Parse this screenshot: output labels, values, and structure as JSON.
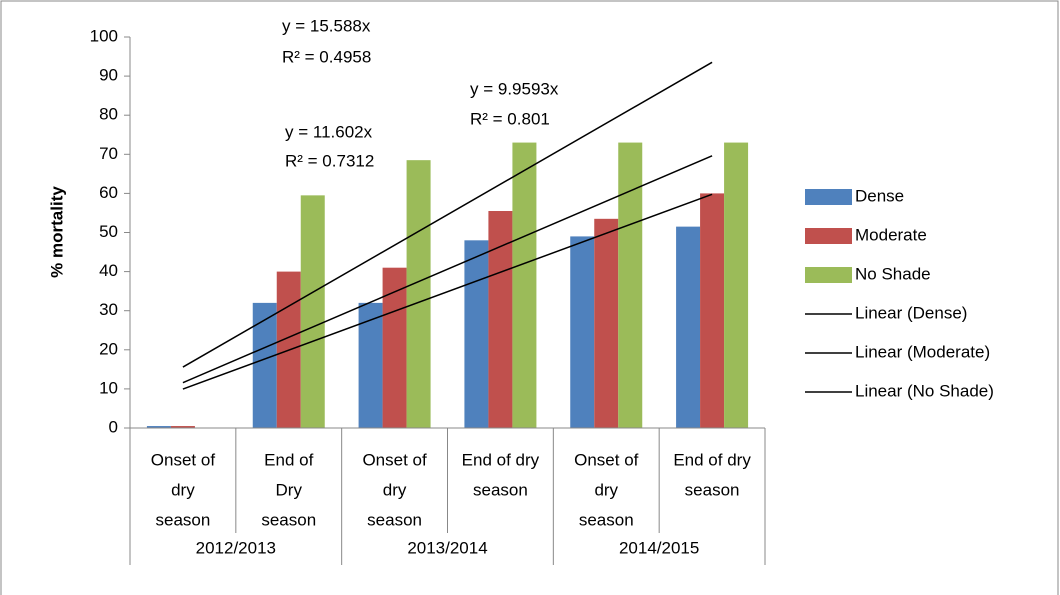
{
  "chart_data": {
    "type": "bar",
    "ylabel": "% mortality",
    "categories": [
      [
        "Onset of",
        "dry",
        "season"
      ],
      [
        "End of",
        "Dry",
        "season"
      ],
      [
        "Onset of",
        "dry",
        "season"
      ],
      [
        "End of dry",
        "season"
      ],
      [
        "Onset of",
        "dry",
        "season"
      ],
      [
        "End of dry",
        "season"
      ]
    ],
    "groups": [
      "2012/2013",
      "2013/2014",
      "2014/2015"
    ],
    "series": [
      {
        "name": "Dense",
        "color": "#4f81bd",
        "values": [
          0.5,
          32,
          32,
          48,
          49,
          51.5
        ]
      },
      {
        "name": "Moderate",
        "color": "#c0504d",
        "values": [
          0.5,
          40,
          41,
          55.5,
          53.5,
          60
        ]
      },
      {
        "name": "No Shade",
        "color": "#9bbb59",
        "values": [
          0,
          59.5,
          68.5,
          73,
          73,
          73
        ]
      }
    ],
    "trendlines": [
      {
        "name": "Linear (Dense)",
        "slope": 9.9593,
        "equation": "y = 9.9593x",
        "r2": "R² = 0.801"
      },
      {
        "name": "Linear (Moderate)",
        "slope": 11.602,
        "equation": "y = 11.602x",
        "r2": "R² = 0.7312"
      },
      {
        "name": "Linear (No Shade)",
        "slope": 15.588,
        "equation": "y = 15.588x",
        "r2": "R² = 0.4958"
      }
    ],
    "ylim": [
      0,
      100
    ],
    "yticks": [
      0,
      10,
      20,
      30,
      40,
      50,
      60,
      70,
      80,
      90,
      100
    ]
  }
}
